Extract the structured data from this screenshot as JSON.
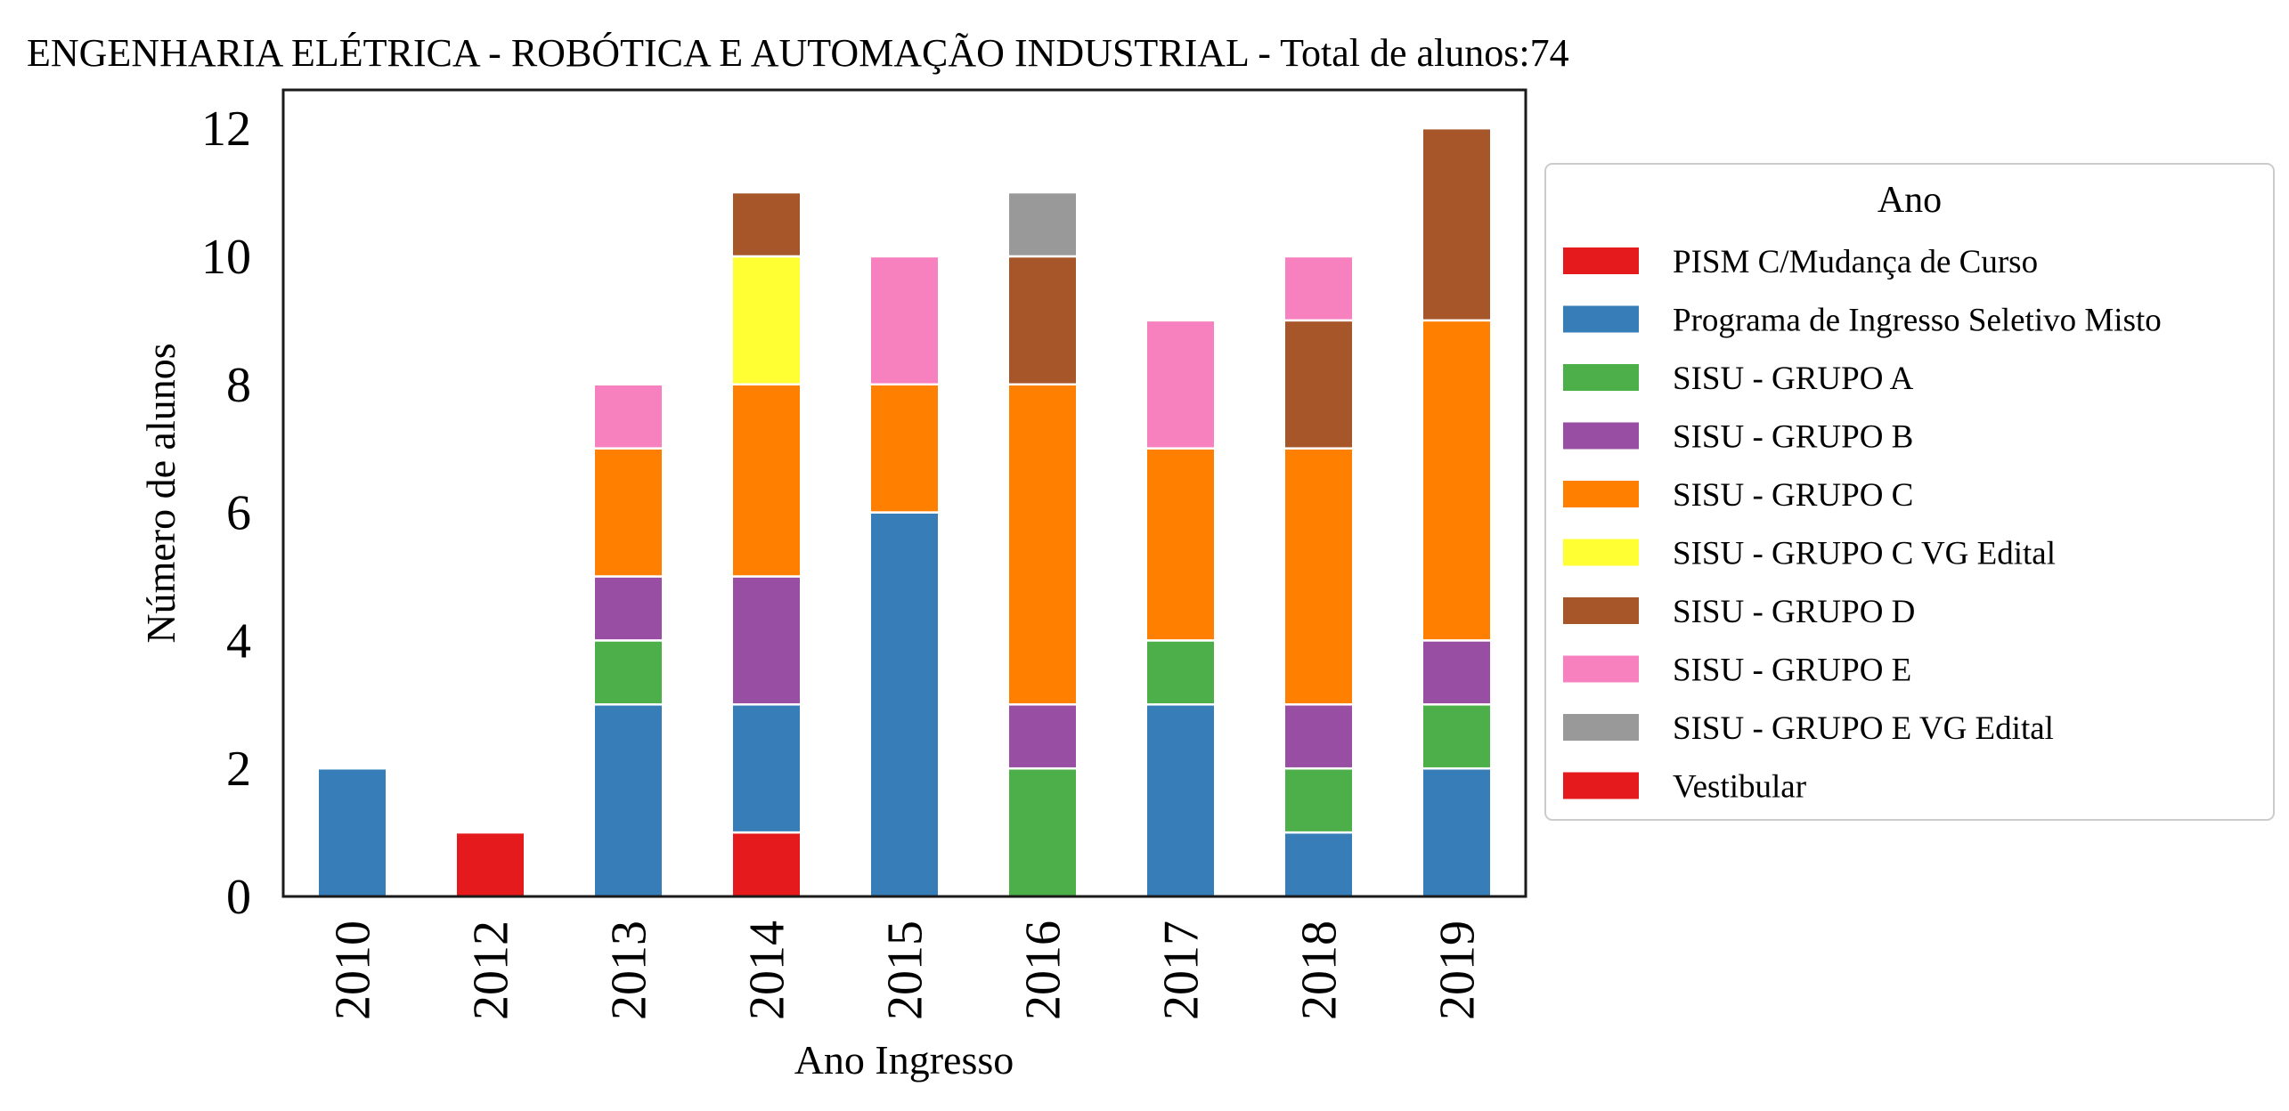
{
  "chart_data": {
    "type": "bar",
    "stacked": true,
    "title": "ENGENHARIA ELÉTRICA - ROBÓTICA E AUTOMAÇÃO INDUSTRIAL - Total de alunos:74",
    "xlabel": "Ano Ingresso",
    "ylabel": "Número de alunos",
    "ylim": [
      0,
      12.6
    ],
    "yticks": [
      "0",
      "2",
      "4",
      "6",
      "8",
      "10",
      "12"
    ],
    "grid": false,
    "legend_title": "Ano",
    "legend_position": "right",
    "categories": [
      "2010",
      "2012",
      "2013",
      "2014",
      "2015",
      "2016",
      "2017",
      "2018",
      "2019"
    ],
    "series": [
      {
        "name": "PISM C/Mudança de Curso",
        "color": "#e41a1c",
        "values": [
          0,
          0,
          0,
          0,
          0,
          0,
          0,
          0,
          0
        ]
      },
      {
        "name": "Programa de Ingresso Seletivo Misto",
        "color": "#377eb8",
        "values": [
          2,
          0,
          3,
          2,
          6,
          0,
          3,
          1,
          2
        ]
      },
      {
        "name": "SISU - GRUPO A",
        "color": "#4daf4a",
        "values": [
          0,
          0,
          1,
          0,
          0,
          2,
          1,
          1,
          1
        ]
      },
      {
        "name": "SISU - GRUPO B",
        "color": "#984ea3",
        "values": [
          0,
          0,
          1,
          2,
          0,
          1,
          0,
          1,
          1
        ]
      },
      {
        "name": "SISU - GRUPO C",
        "color": "#ff7f00",
        "values": [
          0,
          0,
          2,
          3,
          2,
          5,
          3,
          4,
          5
        ]
      },
      {
        "name": "SISU - GRUPO C VG Edital",
        "color": "#ffff33",
        "values": [
          0,
          0,
          0,
          2,
          0,
          0,
          0,
          0,
          0
        ]
      },
      {
        "name": "SISU - GRUPO D",
        "color": "#a65628",
        "values": [
          0,
          0,
          0,
          1,
          0,
          2,
          0,
          2,
          3
        ]
      },
      {
        "name": "SISU - GRUPO E",
        "color": "#f781bf",
        "values": [
          0,
          0,
          1,
          0,
          2,
          0,
          2,
          1,
          0
        ]
      },
      {
        "name": "SISU - GRUPO E VG Edital",
        "color": "#999999",
        "values": [
          0,
          0,
          0,
          0,
          0,
          1,
          0,
          0,
          0
        ]
      },
      {
        "name": "Vestibular",
        "color": "#e41a1c",
        "values": [
          0,
          1,
          0,
          1,
          0,
          0,
          0,
          0,
          0
        ]
      }
    ],
    "stack_order": [
      9,
      0,
      1,
      2,
      3,
      4,
      5,
      6,
      7,
      8
    ]
  }
}
